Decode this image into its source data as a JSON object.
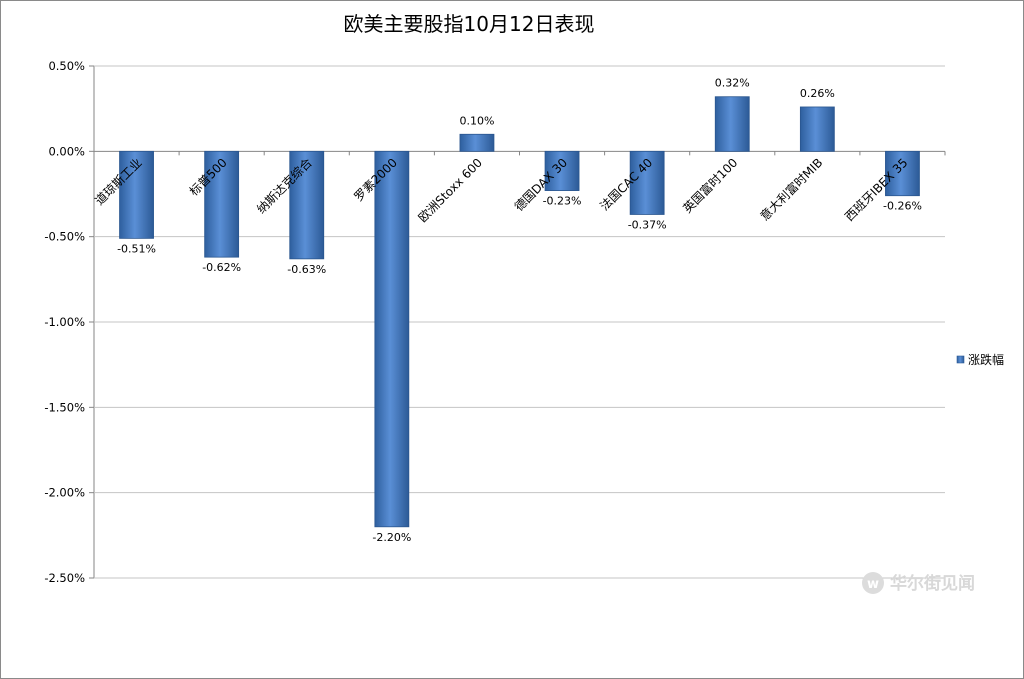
{
  "chart_data": {
    "type": "bar",
    "title": "欧美主要股指10月12日表现",
    "xlabel": "",
    "ylabel": "",
    "ylim": [
      -2.5,
      0.5
    ],
    "y_ticks": [
      0.5,
      0.0,
      -0.5,
      -1.0,
      -1.5,
      -2.0,
      -2.5
    ],
    "y_tick_labels": [
      "0.50%",
      "0.00%",
      "-0.50%",
      "-1.00%",
      "-1.50%",
      "-2.00%",
      "-2.50%"
    ],
    "grid": true,
    "legend_position": "right",
    "categories": [
      "道琼斯工业",
      "标普500",
      "纳斯达克综合",
      "罗素2000",
      "欧洲Stoxx 600",
      "德国DAX 30",
      "法国CAC 40",
      "英国富时100",
      "意大利富时MIB",
      "西班牙IBEX 35"
    ],
    "series": [
      {
        "name": "涨跌幅",
        "values": [
          -0.51,
          -0.62,
          -0.63,
          -2.2,
          0.1,
          -0.23,
          -0.37,
          0.32,
          0.26,
          -0.26
        ],
        "labels": [
          "-0.51%",
          "-0.62%",
          "-0.63%",
          "-2.20%",
          "0.10%",
          "-0.23%",
          "-0.37%",
          "0.32%",
          "0.26%",
          "-0.26%"
        ],
        "color": "#3f76c0"
      }
    ]
  },
  "watermark": {
    "text": "华尔街见闻"
  }
}
